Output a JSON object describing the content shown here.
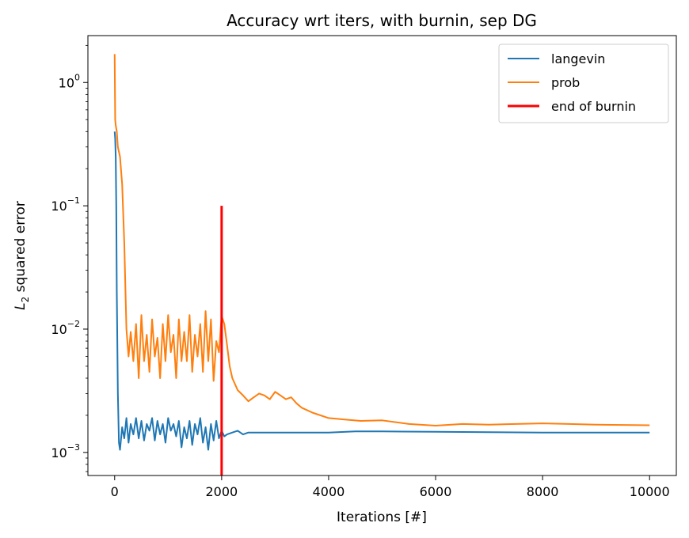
{
  "chart_data": {
    "type": "line",
    "title": "Accuracy wrt iters, with burnin, sep DG",
    "xlabel": "Iterations [#]",
    "ylabel": {
      "base": "L",
      "sub": "2",
      "rest": " squared error"
    },
    "xlim": [
      -500,
      10500
    ],
    "ylim": [
      0.00065,
      2.4
    ],
    "yscale": "log",
    "xticks": [
      0,
      2000,
      4000,
      6000,
      8000,
      10000
    ],
    "xtick_labels": [
      "0",
      "2000",
      "4000",
      "6000",
      "8000",
      "10000"
    ],
    "yticks": [
      {
        "value": 1,
        "base": "10",
        "exp": "0"
      },
      {
        "value": 0.1,
        "base": "10",
        "exp": "−1"
      },
      {
        "value": 0.01,
        "base": "10",
        "exp": "−2"
      },
      {
        "value": 0.001,
        "base": "10",
        "exp": "−3"
      }
    ],
    "grid": false,
    "legend_position": "top-right",
    "series": [
      {
        "name": "langevin",
        "color": "#1f77b4",
        "x": [
          0,
          10,
          20,
          30,
          40,
          60,
          80,
          100,
          140,
          180,
          220,
          260,
          300,
          350,
          400,
          450,
          500,
          550,
          600,
          650,
          700,
          750,
          800,
          850,
          900,
          950,
          1000,
          1050,
          1100,
          1150,
          1200,
          1250,
          1300,
          1350,
          1400,
          1450,
          1500,
          1550,
          1600,
          1650,
          1700,
          1750,
          1800,
          1850,
          1900,
          1950,
          2000,
          2050,
          2100,
          2200,
          2300,
          2400,
          2500,
          2600,
          2800,
          3000,
          3500,
          4000,
          4500,
          5000,
          6000,
          7000,
          8000,
          9000,
          10000
        ],
        "y": [
          0.4,
          0.35,
          0.25,
          0.1,
          0.02,
          0.003,
          0.0012,
          0.00105,
          0.0016,
          0.0013,
          0.0019,
          0.0012,
          0.0017,
          0.0014,
          0.0019,
          0.0013,
          0.0018,
          0.00125,
          0.0017,
          0.0015,
          0.0019,
          0.00125,
          0.0018,
          0.0014,
          0.0017,
          0.0012,
          0.0019,
          0.0015,
          0.0017,
          0.00135,
          0.0018,
          0.0011,
          0.0016,
          0.0013,
          0.0018,
          0.00115,
          0.0017,
          0.0014,
          0.0019,
          0.0012,
          0.0016,
          0.00105,
          0.0017,
          0.00125,
          0.0018,
          0.0013,
          0.0015,
          0.00135,
          0.0014,
          0.00145,
          0.0015,
          0.0014,
          0.00145,
          0.00145,
          0.00145,
          0.00145,
          0.00145,
          0.00145,
          0.00148,
          0.00148,
          0.00147,
          0.00146,
          0.00145,
          0.00145,
          0.00145
        ]
      },
      {
        "name": "prob",
        "color": "#ff7f0e",
        "x": [
          0,
          10,
          20,
          40,
          60,
          100,
          140,
          180,
          220,
          260,
          300,
          350,
          400,
          450,
          500,
          550,
          600,
          650,
          700,
          750,
          800,
          850,
          900,
          950,
          1000,
          1050,
          1100,
          1150,
          1200,
          1250,
          1300,
          1350,
          1400,
          1450,
          1500,
          1550,
          1600,
          1650,
          1700,
          1750,
          1800,
          1850,
          1900,
          1950,
          2000,
          2050,
          2100,
          2150,
          2200,
          2300,
          2400,
          2500,
          2600,
          2700,
          2800,
          2900,
          3000,
          3100,
          3200,
          3300,
          3400,
          3500,
          3700,
          4000,
          4300,
          4600,
          5000,
          5500,
          6000,
          6500,
          7000,
          7500,
          8000,
          8500,
          9000,
          9500,
          10000
        ],
        "y": [
          1.7,
          0.5,
          0.45,
          0.4,
          0.3,
          0.25,
          0.15,
          0.05,
          0.01,
          0.006,
          0.0095,
          0.0055,
          0.011,
          0.004,
          0.013,
          0.0055,
          0.009,
          0.0045,
          0.012,
          0.006,
          0.0085,
          0.004,
          0.011,
          0.0055,
          0.013,
          0.0065,
          0.009,
          0.004,
          0.012,
          0.0055,
          0.0095,
          0.0055,
          0.013,
          0.0045,
          0.009,
          0.006,
          0.011,
          0.0045,
          0.014,
          0.0055,
          0.012,
          0.0038,
          0.008,
          0.0065,
          0.0128,
          0.011,
          0.0075,
          0.005,
          0.004,
          0.0032,
          0.0029,
          0.0026,
          0.0028,
          0.003,
          0.0029,
          0.0027,
          0.0031,
          0.0029,
          0.0027,
          0.0028,
          0.0025,
          0.0023,
          0.0021,
          0.0019,
          0.00185,
          0.0018,
          0.00182,
          0.0017,
          0.00165,
          0.0017,
          0.00168,
          0.0017,
          0.00172,
          0.0017,
          0.00168,
          0.00167,
          0.00166
        ]
      },
      {
        "name": "end of burnin",
        "color": "#ff0000",
        "x": [
          2000,
          2000
        ],
        "y": [
          0.00065,
          0.1
        ]
      }
    ]
  }
}
